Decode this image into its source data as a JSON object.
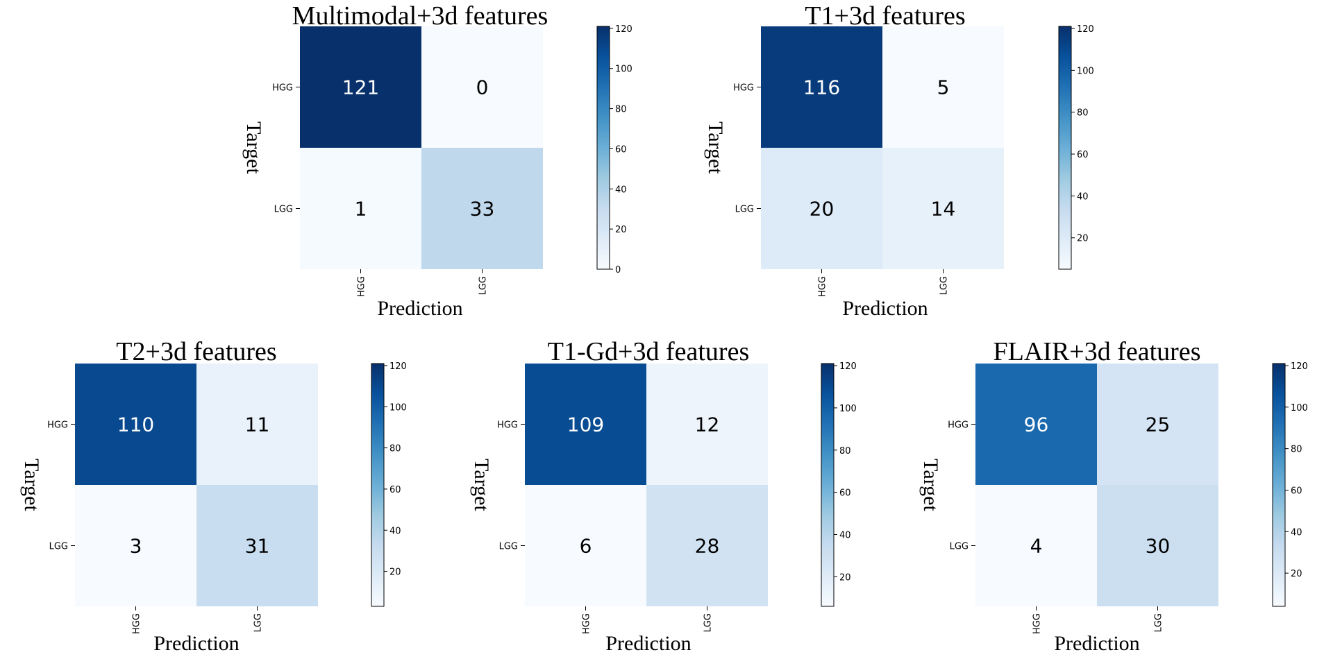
{
  "chart_data": [
    {
      "type": "heatmap",
      "title": "Multimodal+3d features",
      "xlabel": "Prediction",
      "ylabel": "Target",
      "x_categories": [
        "HGG",
        "LGG"
      ],
      "y_categories": [
        "HGG",
        "LGG"
      ],
      "values": [
        [
          121,
          0
        ],
        [
          1,
          33
        ]
      ],
      "colorbar": {
        "range": [
          0,
          121
        ],
        "ticks": [
          0,
          20,
          40,
          60,
          80,
          100,
          120
        ],
        "colormap": "Blues"
      }
    },
    {
      "type": "heatmap",
      "title": "T1+3d features",
      "xlabel": "Prediction",
      "ylabel": "Target",
      "x_categories": [
        "HGG",
        "LGG"
      ],
      "y_categories": [
        "HGG",
        "LGG"
      ],
      "values": [
        [
          116,
          5
        ],
        [
          20,
          14
        ]
      ],
      "colorbar": {
        "range": [
          5,
          121
        ],
        "ticks": [
          20,
          40,
          60,
          80,
          100,
          120
        ],
        "colormap": "Blues"
      }
    },
    {
      "type": "heatmap",
      "title": "T2+3d features",
      "xlabel": "Prediction",
      "ylabel": "Target",
      "x_categories": [
        "HGG",
        "LGG"
      ],
      "y_categories": [
        "HGG",
        "LGG"
      ],
      "values": [
        [
          110,
          11
        ],
        [
          3,
          31
        ]
      ],
      "colorbar": {
        "range": [
          3,
          121
        ],
        "ticks": [
          20,
          40,
          60,
          80,
          100,
          120
        ],
        "colormap": "Blues"
      }
    },
    {
      "type": "heatmap",
      "title": "T1-Gd+3d features",
      "xlabel": "Prediction",
      "ylabel": "Target",
      "x_categories": [
        "HGG",
        "LGG"
      ],
      "y_categories": [
        "HGG",
        "LGG"
      ],
      "values": [
        [
          109,
          12
        ],
        [
          6,
          28
        ]
      ],
      "colorbar": {
        "range": [
          6,
          121
        ],
        "ticks": [
          20,
          40,
          60,
          80,
          100,
          120
        ],
        "colormap": "Blues"
      }
    },
    {
      "type": "heatmap",
      "title": "FLAIR+3d features",
      "xlabel": "Prediction",
      "ylabel": "Target",
      "x_categories": [
        "HGG",
        "LGG"
      ],
      "y_categories": [
        "HGG",
        "LGG"
      ],
      "values": [
        [
          96,
          25
        ],
        [
          4,
          30
        ]
      ],
      "colorbar": {
        "range": [
          4,
          121
        ],
        "ticks": [
          20,
          40,
          60,
          80,
          100,
          120
        ],
        "colormap": "Blues"
      }
    }
  ]
}
